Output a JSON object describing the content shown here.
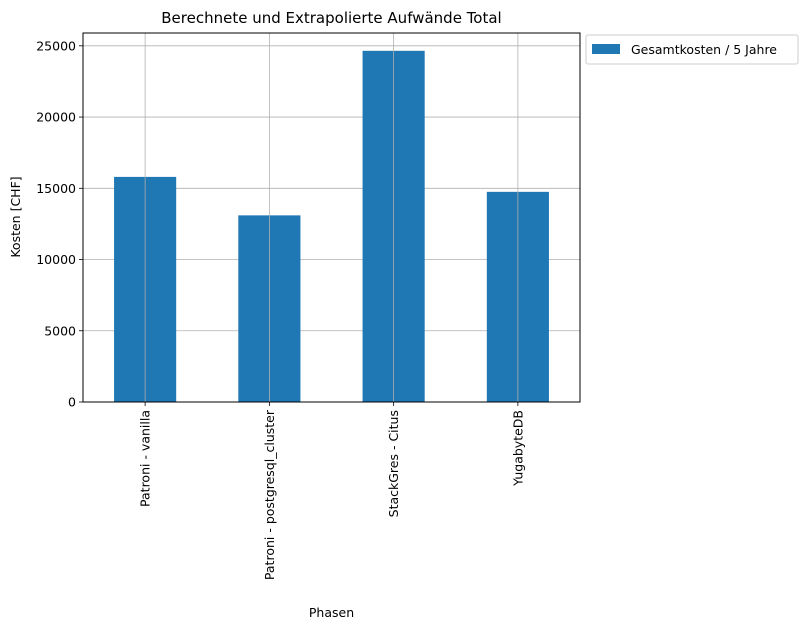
{
  "chart_data": {
    "type": "bar",
    "title": "Berechnete und Extrapolierte Aufwände Total",
    "xlabel": "Phasen",
    "ylabel": "Kosten [CHF]",
    "categories": [
      "Patroni - vanilla",
      "Patroni - postgresql_cluster",
      "StackGres - Citus",
      "YugabyteDB"
    ],
    "series": [
      {
        "name": "Gesamtkosten / 5 Jahre",
        "color": "#1f77b4",
        "values": [
          15800,
          13100,
          24650,
          14750
        ]
      }
    ],
    "ylim": [
      0,
      25900
    ],
    "yticks": [
      0,
      5000,
      10000,
      15000,
      20000,
      25000
    ],
    "grid": true,
    "legend_position": "outside-upper-right"
  }
}
